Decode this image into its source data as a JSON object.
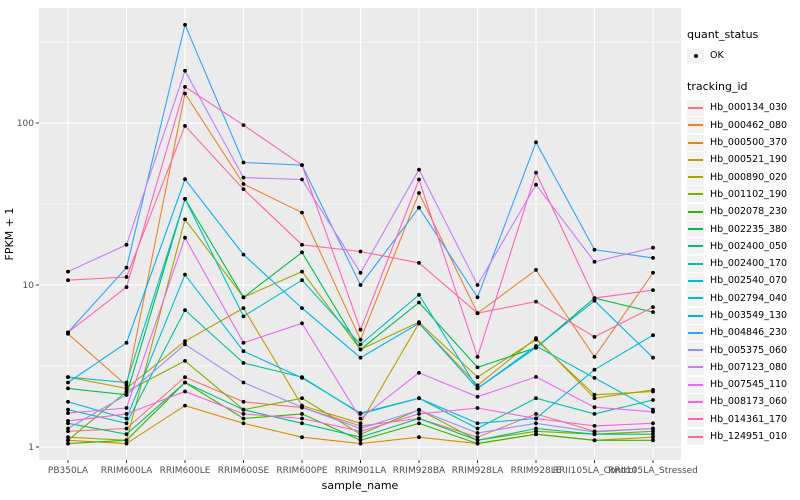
{
  "figure": {
    "background": "#FFFFFF",
    "panel_background": "#EBEBEB",
    "gridline_color": "#FFFFFF",
    "tick_color": "#333333",
    "tick_label_color": "#4D4D4D",
    "point_color": "#000000"
  },
  "axes": {
    "x_title": "sample_name",
    "y_title": "FPKM + 1",
    "y_tick_labels": [
      "1",
      "10",
      "100"
    ]
  },
  "legend": {
    "quant_status_title": "quant_status",
    "quant_status_items": [
      {
        "label": "OK",
        "marker": "black-point"
      }
    ],
    "tracking_id_title": "tracking_id"
  },
  "chart_data": {
    "type": "line",
    "title": "",
    "xlabel": "sample_name",
    "ylabel": "FPKM + 1",
    "y_scale": "log10",
    "y_ticks": [
      1,
      10,
      100
    ],
    "y_minor_ticks": [
      3.1623,
      31.623,
      316.23
    ],
    "ylim": [
      0.85,
      520
    ],
    "grid": true,
    "legend_position": "right",
    "point_shape": "small-black-point",
    "categories": [
      "PB350LA",
      "RRIM600LA",
      "RRIM600LE",
      "RRIM600SE",
      "RRIM600PE",
      "RRIM901LA",
      "RRIM928BA",
      "RRIM928LA",
      "RRIM928LE",
      "RRII105LA_Control",
      "RRII105LA_Stressed"
    ],
    "series": [
      {
        "tracking_id": "Hb_000134_030",
        "color": "#F8766D",
        "values": [
          1.25,
          1.3,
          2.7,
          1.9,
          1.75,
          1.35,
          1.5,
          1.15,
          1.6,
          1.25,
          1.3
        ]
      },
      {
        "tracking_id": "Hb_000462_080",
        "color": "#EA8331",
        "values": [
          5.0,
          2.4,
          152,
          42,
          28,
          4.6,
          37,
          6.7,
          12.4,
          3.6,
          11.9
        ]
      },
      {
        "tracking_id": "Hb_000500_370",
        "color": "#D89000",
        "values": [
          1.1,
          1.05,
          1.8,
          1.4,
          1.15,
          1.05,
          1.15,
          1.05,
          1.2,
          1.1,
          1.15
        ]
      },
      {
        "tracking_id": "Hb_000521_190",
        "color": "#C09B00",
        "values": [
          2.7,
          2.3,
          4.5,
          7.2,
          1.8,
          1.4,
          5.8,
          2.4,
          4.7,
          2.0,
          2.25
        ]
      },
      {
        "tracking_id": "Hb_000890_020",
        "color": "#A3A500",
        "values": [
          1.15,
          1.1,
          25.4,
          8.4,
          12.1,
          4.0,
          5.9,
          2.7,
          4.6,
          2.1,
          2.2
        ]
      },
      {
        "tracking_id": "Hb_001102_190",
        "color": "#7CAE00",
        "values": [
          1.1,
          2.2,
          3.4,
          1.7,
          2.0,
          1.2,
          1.7,
          1.1,
          1.25,
          1.2,
          1.25
        ]
      },
      {
        "tracking_id": "Hb_002078_230",
        "color": "#39B600",
        "values": [
          1.05,
          1.1,
          2.5,
          1.5,
          1.6,
          1.1,
          1.4,
          1.05,
          1.2,
          1.1,
          1.1
        ]
      },
      {
        "tracking_id": "Hb_002235_380",
        "color": "#00BB4E",
        "values": [
          2.3,
          2.1,
          34,
          8.4,
          15.9,
          4.0,
          7.8,
          3.1,
          4.1,
          8.3,
          6.8
        ]
      },
      {
        "tracking_id": "Hb_002400_050",
        "color": "#00BF7D",
        "values": [
          1.4,
          1.2,
          2.5,
          1.7,
          1.4,
          1.15,
          1.5,
          1.1,
          1.3,
          1.2,
          1.2
        ]
      },
      {
        "tracking_id": "Hb_002400_170",
        "color": "#00C1A3",
        "values": [
          1.7,
          1.4,
          7.0,
          3.3,
          2.7,
          1.6,
          2.0,
          1.3,
          2.0,
          1.6,
          1.95
        ]
      },
      {
        "tracking_id": "Hb_002540_070",
        "color": "#00BFC4",
        "values": [
          2.7,
          2.5,
          34,
          6.4,
          10.7,
          4.3,
          8.7,
          2.3,
          4.2,
          2.67,
          1.7
        ]
      },
      {
        "tracking_id": "Hb_002794_040",
        "color": "#00BAE0",
        "values": [
          1.9,
          1.5,
          11.6,
          3.9,
          2.67,
          1.62,
          2.0,
          1.4,
          1.5,
          3.0,
          4.9
        ]
      },
      {
        "tracking_id": "Hb_003549_130",
        "color": "#00B0F6",
        "values": [
          2.5,
          4.4,
          45,
          15.4,
          7.2,
          3.56,
          5.8,
          2.3,
          4.1,
          8.0,
          3.56
        ]
      },
      {
        "tracking_id": "Hb_004846_230",
        "color": "#35A2FF",
        "values": [
          5.1,
          12.8,
          404,
          57,
          55,
          10.0,
          30,
          8.4,
          76,
          16.5,
          14.7
        ]
      },
      {
        "tracking_id": "Hb_005375_060",
        "color": "#9590FF",
        "values": [
          1.3,
          2.1,
          4.3,
          2.5,
          1.76,
          1.3,
          1.69,
          1.22,
          1.4,
          1.24,
          1.3
        ]
      },
      {
        "tracking_id": "Hb_007123_080",
        "color": "#C77CFF",
        "values": [
          12.1,
          17.7,
          210,
          46,
          44.8,
          11.9,
          51.6,
          10.0,
          41.6,
          13.9,
          17.0
        ]
      },
      {
        "tracking_id": "Hb_007545_110",
        "color": "#E76BF3",
        "values": [
          1.62,
          1.74,
          19.6,
          4.4,
          5.8,
          1.5,
          2.87,
          2.04,
          2.71,
          1.76,
          1.65
        ]
      },
      {
        "tracking_id": "Hb_008173_060",
        "color": "#FA62DB",
        "values": [
          1.45,
          1.6,
          2.2,
          1.6,
          1.5,
          1.25,
          1.6,
          1.74,
          1.5,
          1.35,
          1.4
        ]
      },
      {
        "tracking_id": "Hb_014361_170",
        "color": "#FF62BC",
        "values": [
          5.1,
          9.7,
          167,
          97,
          55,
          5.3,
          44.8,
          3.6,
          49.4,
          8.3,
          9.3
        ]
      },
      {
        "tracking_id": "Hb_124951_010",
        "color": "#FF6A98",
        "values": [
          10.7,
          11.2,
          96,
          39,
          17.7,
          16.1,
          13.7,
          6.7,
          7.9,
          4.78,
          7.3
        ]
      }
    ]
  }
}
